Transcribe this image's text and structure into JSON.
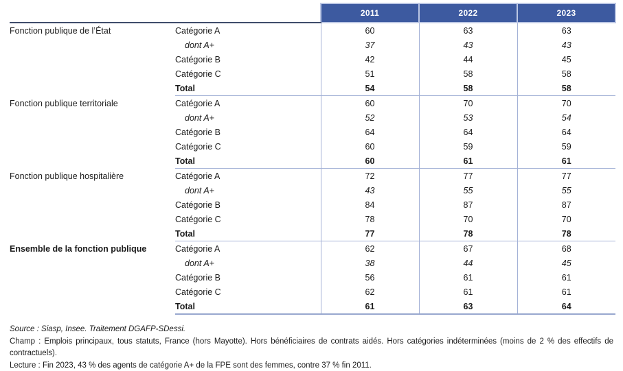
{
  "table": {
    "years": [
      "2011",
      "2022",
      "2023"
    ],
    "groups": [
      {
        "label": "Fonction publique de l’État",
        "bold": false,
        "rows": [
          {
            "label": "Catégorie A",
            "style": "normal",
            "values": [
              "60",
              "63",
              "63"
            ]
          },
          {
            "label": "dont A+",
            "style": "italic",
            "values": [
              "37",
              "43",
              "43"
            ]
          },
          {
            "label": "Catégorie B",
            "style": "normal",
            "values": [
              "42",
              "44",
              "45"
            ]
          },
          {
            "label": "Catégorie C",
            "style": "normal",
            "values": [
              "51",
              "58",
              "58"
            ]
          },
          {
            "label": "Total",
            "style": "total",
            "values": [
              "54",
              "58",
              "58"
            ]
          }
        ]
      },
      {
        "label": "Fonction publique territoriale",
        "bold": false,
        "rows": [
          {
            "label": "Catégorie A",
            "style": "normal",
            "values": [
              "60",
              "70",
              "70"
            ]
          },
          {
            "label": "dont A+",
            "style": "italic",
            "values": [
              "52",
              "53",
              "54"
            ]
          },
          {
            "label": "Catégorie B",
            "style": "normal",
            "values": [
              "64",
              "64",
              "64"
            ]
          },
          {
            "label": "Catégorie C",
            "style": "normal",
            "values": [
              "60",
              "59",
              "59"
            ]
          },
          {
            "label": "Total",
            "style": "total",
            "values": [
              "60",
              "61",
              "61"
            ]
          }
        ]
      },
      {
        "label": "Fonction publique hospitalière",
        "bold": false,
        "rows": [
          {
            "label": "Catégorie A",
            "style": "normal",
            "values": [
              "72",
              "77",
              "77"
            ]
          },
          {
            "label": "dont A+",
            "style": "italic",
            "values": [
              "43",
              "55",
              "55"
            ]
          },
          {
            "label": "Catégorie B",
            "style": "normal",
            "values": [
              "84",
              "87",
              "87"
            ]
          },
          {
            "label": "Catégorie C",
            "style": "normal",
            "values": [
              "78",
              "70",
              "70"
            ]
          },
          {
            "label": "Total",
            "style": "total",
            "values": [
              "77",
              "78",
              "78"
            ]
          }
        ]
      },
      {
        "label": "Ensemble de la fonction publique",
        "bold": true,
        "rows": [
          {
            "label": "Catégorie A",
            "style": "normal",
            "values": [
              "62",
              "67",
              "68"
            ]
          },
          {
            "label": "dont A+",
            "style": "italic",
            "values": [
              "38",
              "44",
              "45"
            ]
          },
          {
            "label": "Catégorie B",
            "style": "normal",
            "values": [
              "56",
              "61",
              "61"
            ]
          },
          {
            "label": "Catégorie C",
            "style": "normal",
            "values": [
              "62",
              "61",
              "61"
            ]
          },
          {
            "label": "Total",
            "style": "total",
            "values": [
              "61",
              "63",
              "64"
            ]
          }
        ]
      }
    ]
  },
  "notes": {
    "source": "Source : Siasp, Insee. Traitement DGAFP-SDessi.",
    "champ": "Champ : Emplois principaux, tous statuts, France (hors Mayotte). Hors bénéficiaires de contrats aidés. Hors catégories indéterminées (moins de 2 % des effectifs de contractuels).",
    "lecture": "Lecture : Fin 2023, 43 % des agents de catégorie A+ de la FPE sont des femmes, contre 37 % fin 2011."
  },
  "colors": {
    "header_bg": "#3d5aa0",
    "header_text": "#ffffff",
    "line_light": "#a3b1d6",
    "line_bottom": "#97a7ce",
    "line_dark": "#3f4c6b",
    "text": "#1b1b1b"
  }
}
